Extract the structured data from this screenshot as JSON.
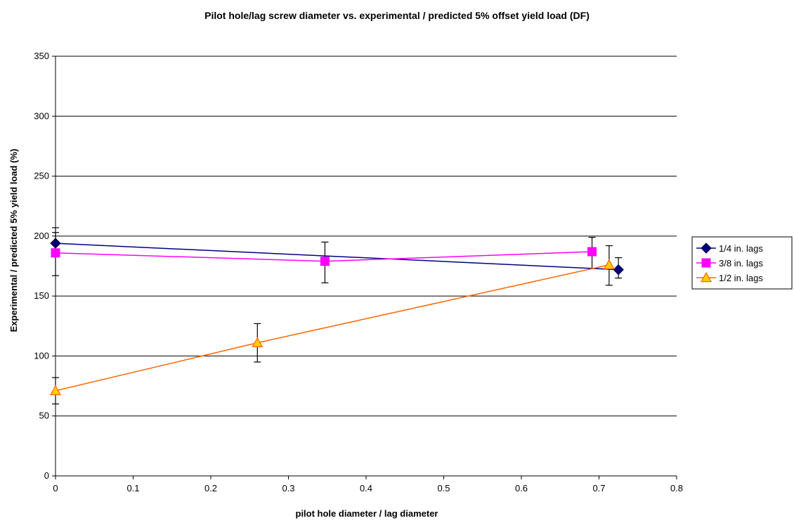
{
  "chart_data": {
    "type": "line",
    "title": "Pilot hole/lag screw diameter vs. experimental / predicted 5% offset yield load (DF)",
    "xlabel": "pilot hole diameter / lag diameter",
    "ylabel": "Experimental / predicted 5% yield load (%)",
    "xlim": [
      0,
      0.8
    ],
    "ylim": [
      0,
      350
    ],
    "x_ticks": [
      "0",
      "0.1",
      "0.2",
      "0.3",
      "0.4",
      "0.5",
      "0.6",
      "0.7",
      "0.8"
    ],
    "y_ticks": [
      "0",
      "50",
      "100",
      "150",
      "200",
      "250",
      "300",
      "350"
    ],
    "grid": "horizontal",
    "legend_position": "right",
    "series": [
      {
        "name": "1/4 in. lags",
        "color": "#000080",
        "marker": "diamond",
        "points": [
          {
            "x": 0,
            "y": 194,
            "err_low": 183,
            "err_high": 207
          },
          {
            "x": 0.725,
            "y": 172,
            "err_low": 165,
            "err_high": 182
          }
        ]
      },
      {
        "name": "3/8 in. lags",
        "color": "#ff00ff",
        "marker": "square",
        "points": [
          {
            "x": 0,
            "y": 186,
            "err_low": 167,
            "err_high": 203
          },
          {
            "x": 0.347,
            "y": 179,
            "err_low": 161,
            "err_high": 195
          },
          {
            "x": 0.691,
            "y": 187,
            "err_low": 173,
            "err_high": 199
          }
        ]
      },
      {
        "name": "1/2 in. lags",
        "color": "#ff6600",
        "marker_fill": "#ffcc00",
        "marker": "triangle",
        "points": [
          {
            "x": 0,
            "y": 71,
            "err_low": 60,
            "err_high": 82
          },
          {
            "x": 0.26,
            "y": 111,
            "err_low": 95,
            "err_high": 127
          },
          {
            "x": 0.713,
            "y": 176,
            "err_low": 159,
            "err_high": 192
          }
        ]
      }
    ]
  }
}
